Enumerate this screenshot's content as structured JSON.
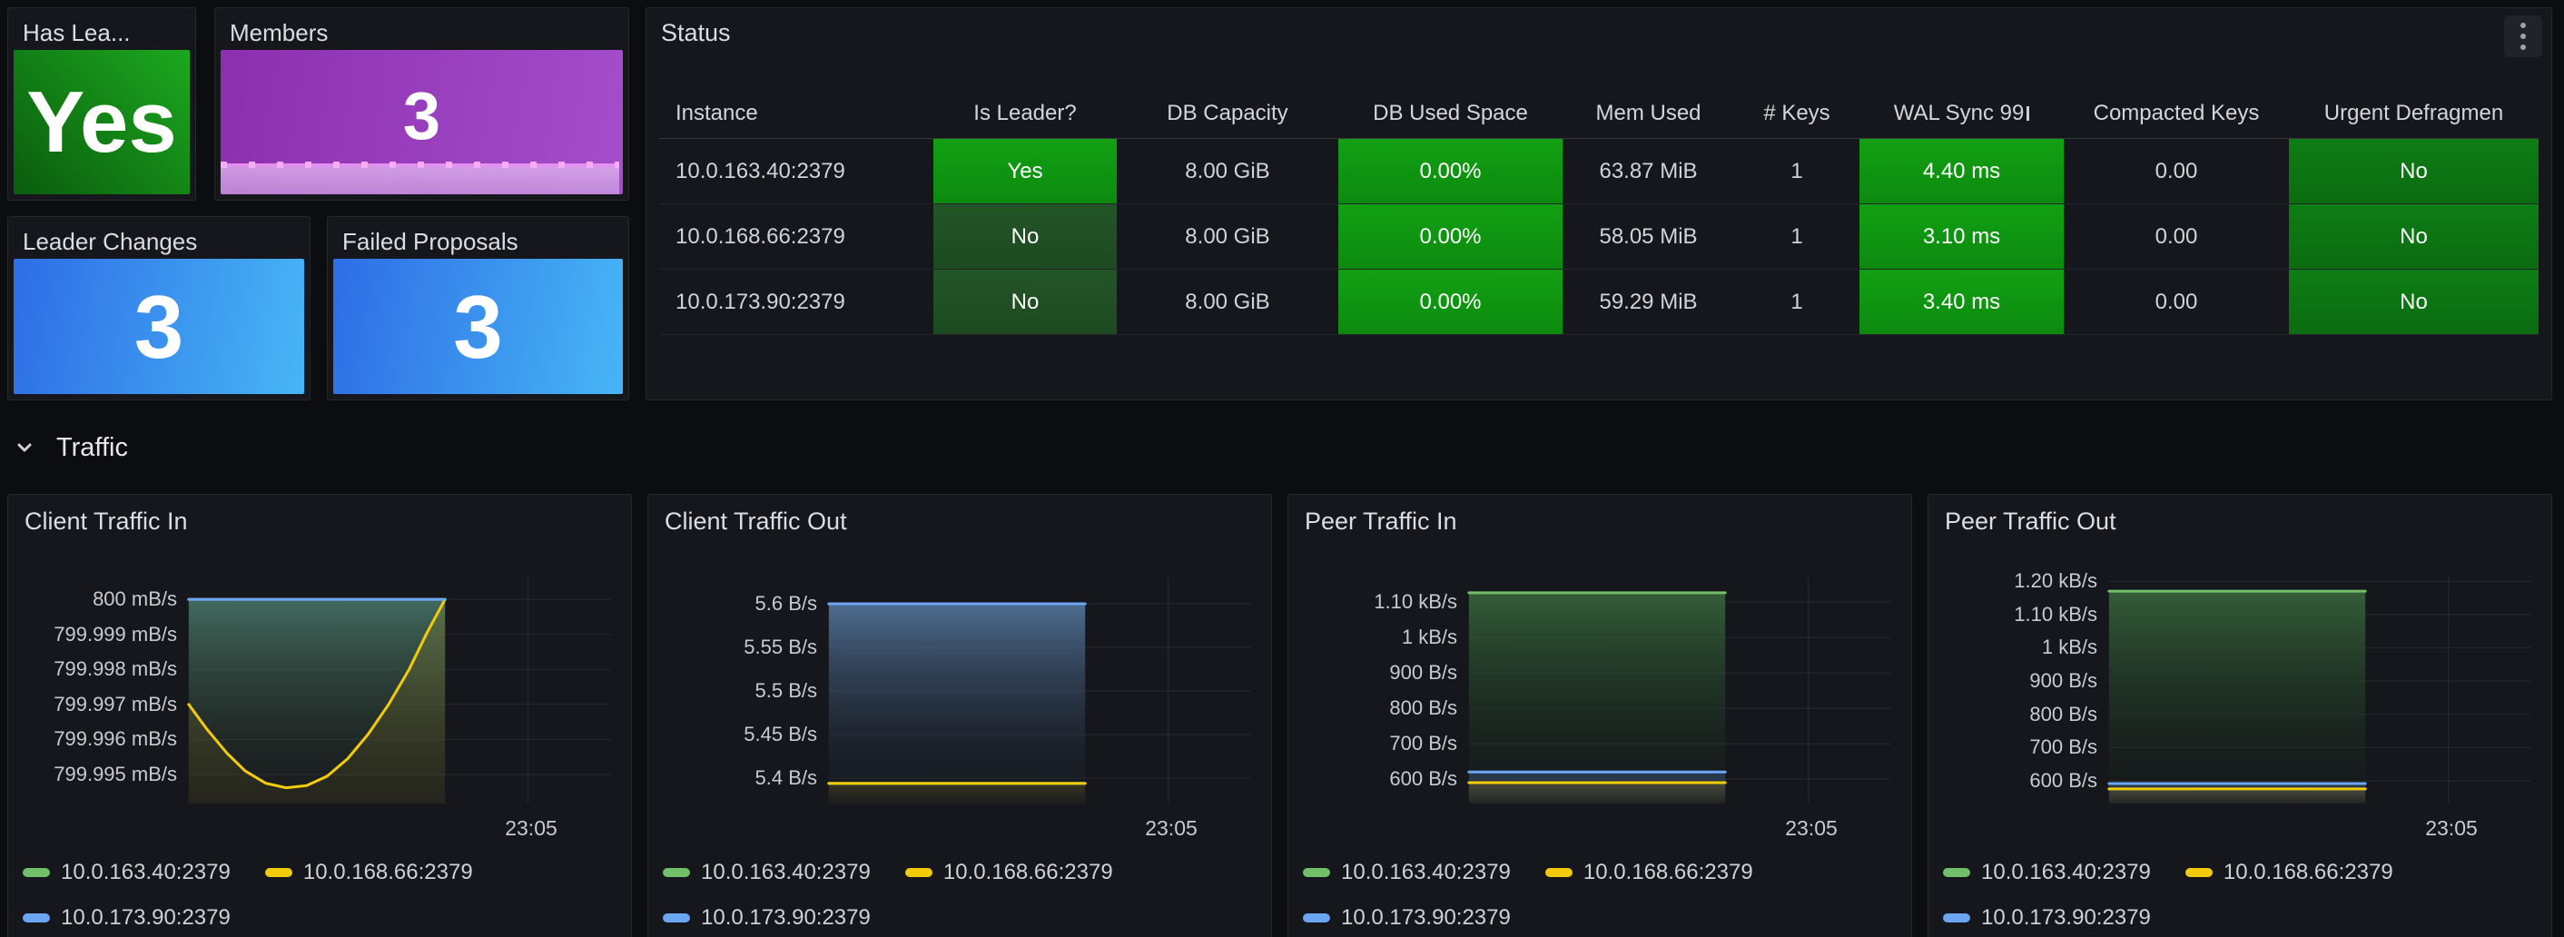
{
  "stats": {
    "has_leader": {
      "title": "Has Lea...",
      "value": "Yes"
    },
    "members": {
      "title": "Members",
      "value": "3"
    },
    "leader_changes": {
      "title": "Leader Changes",
      "value": "3"
    },
    "failed_proposals": {
      "title": "Failed Proposals",
      "value": "3"
    }
  },
  "status_table": {
    "title": "Status",
    "menu_icon": "kebab-menu",
    "columns": [
      "Instance",
      "Is Leader?",
      "DB Capacity",
      "DB Used Space",
      "Mem Used",
      "# Keys",
      "WAL Sync 99",
      "Compacted Keys",
      "Urgent Defragmen"
    ],
    "rows": [
      {
        "instance": "10.0.163.40:2379",
        "is_leader": "Yes",
        "db_capacity": "8.00 GiB",
        "db_used": "0.00%",
        "mem_used": "63.87 MiB",
        "keys": "1",
        "wal_sync": "4.40 ms",
        "compacted": "0.00",
        "urgent_defrag": "No"
      },
      {
        "instance": "10.0.168.66:2379",
        "is_leader": "No",
        "db_capacity": "8.00 GiB",
        "db_used": "0.00%",
        "mem_used": "58.05 MiB",
        "keys": "1",
        "wal_sync": "3.10 ms",
        "compacted": "0.00",
        "urgent_defrag": "No"
      },
      {
        "instance": "10.0.173.90:2379",
        "is_leader": "No",
        "db_capacity": "8.00 GiB",
        "db_used": "0.00%",
        "mem_used": "59.29 MiB",
        "keys": "1",
        "wal_sync": "3.40 ms",
        "compacted": "0.00",
        "urgent_defrag": "No"
      }
    ],
    "colors": {
      "bright_green": "#12a013",
      "muted_green": "#235527",
      "mid_green": "#0e7d14"
    }
  },
  "traffic_section": {
    "label": "Traffic",
    "collapse_icon": "chevron-down"
  },
  "charts": [
    {
      "title": "Client Traffic In",
      "chart_data": {
        "type": "area",
        "unit": "mB/s",
        "xlabel": "23:05",
        "ylim": [
          799.99417,
          800.00065
        ],
        "yticks": [
          {
            "label": "800 mB/s",
            "value": 800
          },
          {
            "label": "799.999 mB/s",
            "value": 799.999
          },
          {
            "label": "799.998 mB/s",
            "value": 799.998
          },
          {
            "label": "799.997 mB/s",
            "value": 799.997
          },
          {
            "label": "799.996 mB/s",
            "value": 799.996
          },
          {
            "label": "799.995 mB/s",
            "value": 799.995
          }
        ],
        "series": [
          {
            "name": "10.0.163.40:2379",
            "color": "#73BF69",
            "points": [
              [
                0,
                800
              ],
              [
                1,
                800
              ]
            ],
            "fill": {
              "top": "rgba(70,115,102,0.9)",
              "bottom": "rgba(46,56,38,0.08)"
            }
          },
          {
            "name": "10.0.168.66:2379",
            "color": "#F2CC0C",
            "points": [
              [
                0,
                799.997
              ],
              [
                0.07,
                799.9963
              ],
              [
                0.15,
                799.9956
              ],
              [
                0.22,
                799.9951
              ],
              [
                0.3,
                799.99475
              ],
              [
                0.38,
                799.99462
              ],
              [
                0.46,
                799.99468
              ],
              [
                0.54,
                799.99495
              ],
              [
                0.62,
                799.99545
              ],
              [
                0.7,
                799.99615
              ],
              [
                0.78,
                799.997
              ],
              [
                0.86,
                799.998
              ],
              [
                0.93,
                799.99905
              ],
              [
                1,
                800
              ]
            ],
            "fill": {
              "top": "rgba(150,130,30,0.30)",
              "bottom": "rgba(150,130,30,0.10)"
            }
          },
          {
            "name": "10.0.173.90:2379",
            "color": "#6CA6F2",
            "points": [
              [
                0,
                800
              ],
              [
                1,
                800
              ]
            ],
            "fill": null
          }
        ],
        "legend": [
          {
            "label": "10.0.163.40:2379",
            "color": "#73BF69"
          },
          {
            "label": "10.0.168.66:2379",
            "color": "#F2CC0C"
          },
          {
            "label": "10.0.173.90:2379",
            "color": "#6CA6F2"
          }
        ]
      }
    },
    {
      "title": "Client Traffic Out",
      "chart_data": {
        "type": "area",
        "unit": "B/s",
        "xlabel": "23:05",
        "ylim": [
          5.3708,
          5.6313
        ],
        "yticks": [
          {
            "label": "5.6 B/s",
            "value": 5.6
          },
          {
            "label": "5.55 B/s",
            "value": 5.55
          },
          {
            "label": "5.5 B/s",
            "value": 5.5
          },
          {
            "label": "5.45 B/s",
            "value": 5.45
          },
          {
            "label": "5.4 B/s",
            "value": 5.4
          }
        ],
        "series": [
          {
            "name": "10.0.173.90:2379",
            "color": "#6CA6F2",
            "points": [
              [
                0,
                5.6
              ],
              [
                1,
                5.6
              ]
            ],
            "fill": {
              "top": "rgba(92,130,172,0.8)",
              "bottom": "rgba(28,36,50,0.08)"
            }
          },
          {
            "name": "10.0.163.40:2379",
            "color": "#73BF69",
            "points": [
              [
                0,
                5.3938
              ],
              [
                1,
                5.3938
              ]
            ],
            "fill": null
          },
          {
            "name": "10.0.168.66:2379",
            "color": "#F2CC0C",
            "points": [
              [
                0,
                5.394
              ],
              [
                1,
                5.394
              ]
            ],
            "fill": {
              "top": "rgba(150,130,30,0.25)",
              "bottom": "rgba(150,130,30,0.05)"
            }
          }
        ],
        "legend": [
          {
            "label": "10.0.163.40:2379",
            "color": "#73BF69"
          },
          {
            "label": "10.0.168.66:2379",
            "color": "#F2CC0C"
          },
          {
            "label": "10.0.173.90:2379",
            "color": "#6CA6F2"
          }
        ]
      }
    },
    {
      "title": "Peer Traffic In",
      "chart_data": {
        "type": "area",
        "unit": "B/s",
        "xlabel": "23:05",
        "ylim": [
          531,
          1172
        ],
        "yticks": [
          {
            "label": "1.10 kB/s",
            "value": 1100
          },
          {
            "label": "1 kB/s",
            "value": 1000
          },
          {
            "label": "900 B/s",
            "value": 900
          },
          {
            "label": "800 B/s",
            "value": 800
          },
          {
            "label": "700 B/s",
            "value": 700
          },
          {
            "label": "600 B/s",
            "value": 600
          }
        ],
        "series": [
          {
            "name": "10.0.163.40:2379",
            "color": "#73BF69",
            "points": [
              [
                0,
                1126
              ],
              [
                1,
                1126
              ]
            ],
            "fill": {
              "top": "rgba(56,106,60,0.85)",
              "bottom": "rgba(22,34,24,0.15)"
            }
          },
          {
            "name": "10.0.173.90:2379",
            "color": "#6CA6F2",
            "points": [
              [
                0,
                620
              ],
              [
                1,
                620
              ]
            ],
            "fill": {
              "top": "rgba(100,150,220,0.25)",
              "bottom": "rgba(100,150,220,0.05)"
            }
          },
          {
            "name": "10.0.168.66:2379",
            "color": "#F2CC0C",
            "points": [
              [
                0,
                590
              ],
              [
                1,
                590
              ]
            ],
            "fill": {
              "top": "rgba(170,145,30,0.25)",
              "bottom": "rgba(170,145,30,0.05)"
            }
          }
        ],
        "legend": [
          {
            "label": "10.0.163.40:2379",
            "color": "#73BF69"
          },
          {
            "label": "10.0.168.66:2379",
            "color": "#F2CC0C"
          },
          {
            "label": "10.0.173.90:2379",
            "color": "#6CA6F2"
          }
        ]
      }
    },
    {
      "title": "Peer Traffic Out",
      "chart_data": {
        "type": "area",
        "unit": "B/s",
        "xlabel": "23:05",
        "ylim": [
          532,
          1214
        ],
        "yticks": [
          {
            "label": "1.20 kB/s",
            "value": 1200
          },
          {
            "label": "1.10 kB/s",
            "value": 1100
          },
          {
            "label": "1 kB/s",
            "value": 1000
          },
          {
            "label": "900 B/s",
            "value": 900
          },
          {
            "label": "800 B/s",
            "value": 800
          },
          {
            "label": "700 B/s",
            "value": 700
          },
          {
            "label": "600 B/s",
            "value": 600
          }
        ],
        "series": [
          {
            "name": "10.0.163.40:2379",
            "color": "#73BF69",
            "points": [
              [
                0,
                1170
              ],
              [
                1,
                1170
              ]
            ],
            "fill": {
              "top": "rgba(56,106,60,0.85)",
              "bottom": "rgba(22,34,24,0.15)"
            }
          },
          {
            "name": "10.0.173.90:2379",
            "color": "#6CA6F2",
            "points": [
              [
                0,
                592
              ],
              [
                1,
                592
              ]
            ],
            "fill": {
              "top": "rgba(100,150,220,0.25)",
              "bottom": "rgba(100,150,220,0.05)"
            }
          },
          {
            "name": "10.0.168.66:2379",
            "color": "#F2CC0C",
            "points": [
              [
                0,
                576
              ],
              [
                1,
                576
              ]
            ],
            "fill": {
              "top": "rgba(170,145,30,0.25)",
              "bottom": "rgba(170,145,30,0.05)"
            }
          }
        ],
        "legend": [
          {
            "label": "10.0.163.40:2379",
            "color": "#73BF69"
          },
          {
            "label": "10.0.168.66:2379",
            "color": "#F2CC0C"
          },
          {
            "label": "10.0.173.90:2379",
            "color": "#6CA6F2"
          }
        ]
      }
    }
  ]
}
